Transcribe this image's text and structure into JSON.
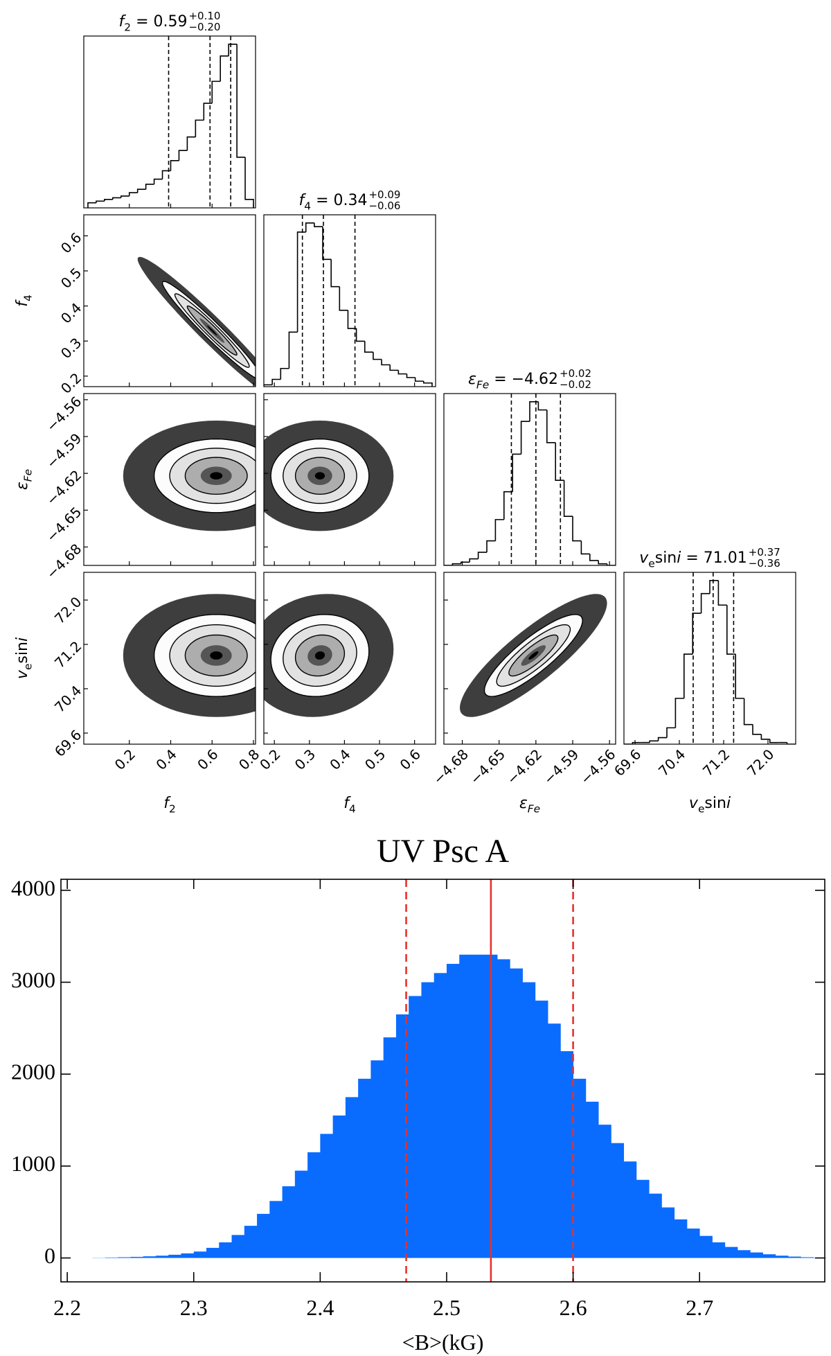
{
  "chart_data": [
    {
      "type": "corner",
      "params": [
        {
          "label": [
            {
              "t": "f",
              "i": true
            },
            {
              "t": "2",
              "sub": true
            }
          ],
          "title": {
            "eq": " = 0.59",
            "plus": "+0.10",
            "minus": "−0.20"
          },
          "lim": [
            -0.02,
            0.81
          ],
          "ticks": [
            0.2,
            0.4,
            0.6,
            0.8
          ],
          "quantiles": [
            0.39,
            0.59,
            0.69
          ],
          "bins": [
            0,
            0.04,
            0.08,
            0.12,
            0.16,
            0.2,
            0.24,
            0.28,
            0.32,
            0.36,
            0.4,
            0.44,
            0.48,
            0.52,
            0.56,
            0.6,
            0.64,
            0.68,
            0.72,
            0.76,
            0.8
          ],
          "counts": [
            3,
            4,
            5,
            6,
            7,
            9,
            11,
            14,
            17,
            22,
            28,
            34,
            42,
            52,
            62,
            75,
            90,
            97,
            30,
            5
          ],
          "joint": []
        },
        {
          "label": [
            {
              "t": "f",
              "i": true
            },
            {
              "t": "4",
              "sub": true
            }
          ],
          "title": {
            "eq": " = 0.34",
            "plus": "+0.09",
            "minus": "−0.06"
          },
          "lim": [
            0.17,
            0.66
          ],
          "ticks": [
            0.2,
            0.3,
            0.4,
            0.5,
            0.6
          ],
          "quantiles": [
            0.28,
            0.34,
            0.43
          ],
          "bins": [
            0.17,
            0.194,
            0.218,
            0.242,
            0.266,
            0.29,
            0.314,
            0.338,
            0.362,
            0.386,
            0.41,
            0.434,
            0.458,
            0.482,
            0.506,
            0.53,
            0.554,
            0.578,
            0.602,
            0.626,
            0.65
          ],
          "counts": [
            1,
            4,
            10,
            30,
            85,
            90,
            88,
            70,
            55,
            42,
            32,
            25,
            19,
            15,
            12,
            9,
            7,
            5,
            3,
            2
          ],
          "joint": [
            {
              "center": [
                0.6,
                0.33
              ],
              "sd": [
                0.12,
                0.07
              ],
              "rho": -0.97
            }
          ]
        },
        {
          "label": [
            {
              "t": "ε",
              "i": true
            },
            {
              "t": "Fe",
              "sub": true,
              "i": true
            }
          ],
          "title": {
            "eq": " = −4.62",
            "plus": "+0.02",
            "minus": "−0.02"
          },
          "lim": [
            -4.695,
            -4.555
          ],
          "ticks": [
            {
              "value": -4.68,
              "label": "−4.68"
            },
            {
              "value": -4.65,
              "label": "−4.65"
            },
            {
              "value": -4.62,
              "label": "−4.62"
            },
            {
              "value": -4.59,
              "label": "−4.59"
            },
            {
              "value": -4.56,
              "label": "−4.56"
            }
          ],
          "quantiles": [
            -4.64,
            -4.62,
            -4.6
          ],
          "bins": [
            -4.695,
            -4.688,
            -4.681,
            -4.674,
            -4.667,
            -4.66,
            -4.653,
            -4.646,
            -4.639,
            -4.632,
            -4.625,
            -4.618,
            -4.611,
            -4.604,
            -4.597,
            -4.59,
            -4.583,
            -4.576,
            -4.569,
            -4.562,
            -4.555
          ],
          "counts": [
            0,
            1,
            2,
            4,
            8,
            15,
            28,
            45,
            68,
            88,
            100,
            95,
            75,
            52,
            30,
            15,
            7,
            3,
            1,
            0
          ],
          "joint": [
            {
              "center": [
                0.62,
                -4.622
              ],
              "sd": [
                0.15,
                0.015
              ],
              "rho": 0
            },
            {
              "center": [
                0.33,
                -4.622
              ],
              "sd": [
                0.07,
                0.015
              ],
              "rho": 0
            }
          ]
        },
        {
          "label": [
            {
              "t": "v",
              "i": true
            },
            {
              "t": "e",
              "sub": true
            },
            {
              "t": "sin"
            },
            {
              "t": "i",
              "i": true
            }
          ],
          "title": {
            "eq": " = 71.01",
            "plus": "+0.37",
            "minus": "−0.36"
          },
          "lim": [
            69.4,
            72.5
          ],
          "ticks": [
            69.6,
            70.4,
            71.2,
            {
              "value": 72.0,
              "label": "72.0"
            }
          ],
          "quantiles": [
            70.65,
            71.01,
            71.38
          ],
          "bins": [
            69.4,
            69.555,
            69.71,
            69.865,
            70.02,
            70.175,
            70.33,
            70.485,
            70.64,
            70.795,
            70.95,
            71.105,
            71.26,
            71.415,
            71.57,
            71.725,
            71.88,
            72.035,
            72.19,
            72.345,
            72.5
          ],
          "counts": [
            0,
            1,
            1,
            2,
            4,
            10,
            28,
            55,
            80,
            92,
            100,
            85,
            55,
            28,
            12,
            6,
            3,
            1,
            1,
            0
          ],
          "joint": [
            {
              "center": [
                0.62,
                71.0
              ],
              "sd": [
                0.15,
                0.37
              ],
              "rho": 0
            },
            {
              "center": [
                0.33,
                71.0
              ],
              "sd": [
                0.07,
                0.37
              ],
              "rho": 0.1
            },
            {
              "center": [
                -4.622,
                71.0
              ],
              "sd": [
                0.02,
                0.37
              ],
              "rho": 0.85
            }
          ]
        }
      ]
    },
    {
      "type": "histogram",
      "title": "UV Psc A",
      "xlabel": "<B>(kG)",
      "color": "#0a6cff",
      "bins": [
        2.2,
        2.21,
        2.22,
        2.23,
        2.24,
        2.25,
        2.26,
        2.27,
        2.28,
        2.29,
        2.3,
        2.31,
        2.32,
        2.33,
        2.34,
        2.35,
        2.36,
        2.37,
        2.38,
        2.39,
        2.4,
        2.41,
        2.42,
        2.43,
        2.44,
        2.45,
        2.46,
        2.47,
        2.48,
        2.49,
        2.5,
        2.51,
        2.52,
        2.53,
        2.54,
        2.55,
        2.56,
        2.57,
        2.58,
        2.59,
        2.6,
        2.61,
        2.62,
        2.63,
        2.64,
        2.65,
        2.66,
        2.67,
        2.68,
        2.69,
        2.7,
        2.71,
        2.72,
        2.73,
        2.74,
        2.75,
        2.76,
        2.77,
        2.78,
        2.79,
        2.8
      ],
      "counts": [
        0,
        0,
        2,
        5,
        8,
        12,
        18,
        25,
        35,
        50,
        70,
        110,
        170,
        250,
        350,
        480,
        620,
        780,
        950,
        1150,
        1350,
        1550,
        1750,
        1950,
        2150,
        2400,
        2650,
        2850,
        3000,
        3100,
        3200,
        3300,
        3300,
        3300,
        3250,
        3150,
        3000,
        2800,
        2550,
        2250,
        1950,
        1700,
        1450,
        1250,
        1050,
        850,
        700,
        550,
        420,
        320,
        240,
        170,
        120,
        85,
        60,
        40,
        25,
        15,
        8,
        4
      ],
      "xlim": [
        2.195,
        2.799
      ],
      "ylim": [
        -260,
        4120
      ],
      "xticks": [
        2.2,
        2.3,
        2.4,
        2.5,
        2.6,
        2.7
      ],
      "yticks": [
        0,
        1000,
        2000,
        3000,
        4000
      ],
      "lines": [
        {
          "x": 2.535,
          "dashed": false,
          "color": "#e8312a"
        },
        {
          "x": 2.468,
          "dashed": true,
          "color": "#e8312a"
        },
        {
          "x": 2.6,
          "dashed": true,
          "color": "#e8312a"
        }
      ]
    }
  ]
}
